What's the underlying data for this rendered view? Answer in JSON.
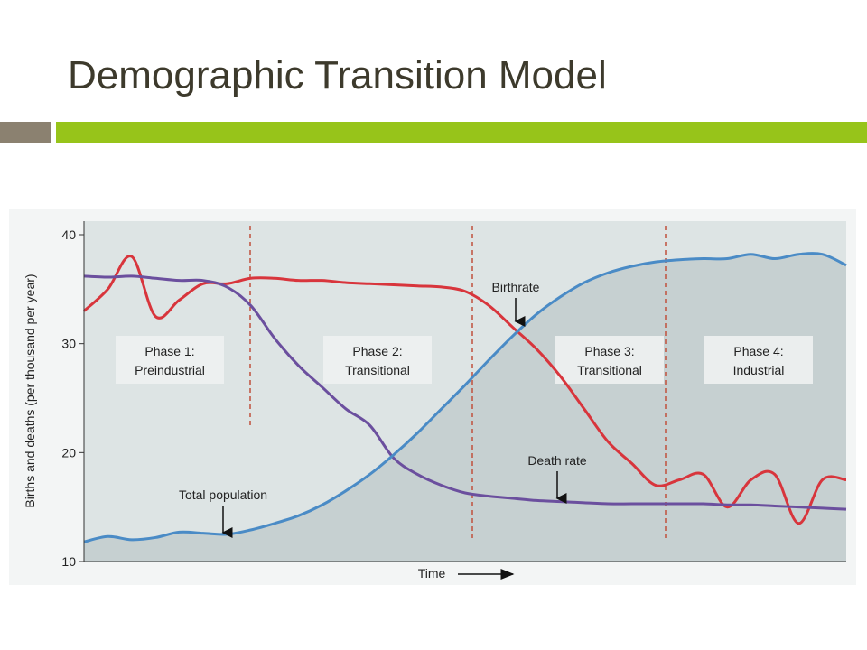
{
  "header": {
    "title": "Demographic Transition Model"
  },
  "chart_data": {
    "type": "line",
    "ylabel": "Births and deaths (per thousand per year)",
    "xlabel": "Time",
    "categories": [
      null,
      null,
      null,
      null,
      null,
      null,
      null,
      null,
      null,
      null,
      null,
      null,
      null,
      null,
      null,
      null,
      null,
      null,
      null,
      null,
      null,
      null,
      null,
      null,
      null,
      null,
      null,
      null,
      null,
      null,
      null,
      null,
      null
    ],
    "ylim": [
      10,
      40
    ],
    "yticks": [
      10,
      20,
      30,
      40
    ],
    "series": [
      {
        "name": "Birthrate",
        "color": "#d8353c",
        "values": [
          33,
          35,
          38,
          32.5,
          34,
          35.5,
          35.5,
          36,
          36,
          35.8,
          35.8,
          35.6,
          35.5,
          35.4,
          35.3,
          35.2,
          34.8,
          33.5,
          31.5,
          29.5,
          27,
          24,
          21,
          19,
          17,
          17.5,
          18,
          15,
          17.5,
          18,
          13.5,
          17.5,
          17.5
        ]
      },
      {
        "name": "Death rate",
        "color": "#6b4f9e",
        "values": [
          36.2,
          36.1,
          36.2,
          36,
          35.8,
          35.8,
          35.2,
          33.5,
          30.5,
          28,
          26,
          24,
          22.5,
          19.5,
          18,
          17,
          16.3,
          16,
          15.8,
          15.6,
          15.5,
          15.4,
          15.3,
          15.3,
          15.3,
          15.3,
          15.3,
          15.2,
          15.2,
          15.1,
          15,
          14.9,
          14.8
        ]
      },
      {
        "name": "Total population",
        "color": "#4a8bc6",
        "values": [
          11.8,
          12.3,
          12,
          12.2,
          12.7,
          12.6,
          12.5,
          12.9,
          13.5,
          14.2,
          15.2,
          16.5,
          18,
          19.8,
          21.8,
          24,
          26.2,
          28.5,
          30.7,
          32.7,
          34.3,
          35.6,
          36.5,
          37.1,
          37.5,
          37.7,
          37.8,
          37.8,
          38.2,
          37.8,
          38.2,
          38.2,
          37.2
        ]
      }
    ],
    "phase_labels": [
      {
        "title": "Phase 1:",
        "name": "Preindustrial"
      },
      {
        "title": "Phase 2:",
        "name": "Transitional"
      },
      {
        "title": "Phase 3:",
        "name": "Transitional"
      },
      {
        "title": "Phase 4:",
        "name": "Industrial"
      }
    ]
  }
}
